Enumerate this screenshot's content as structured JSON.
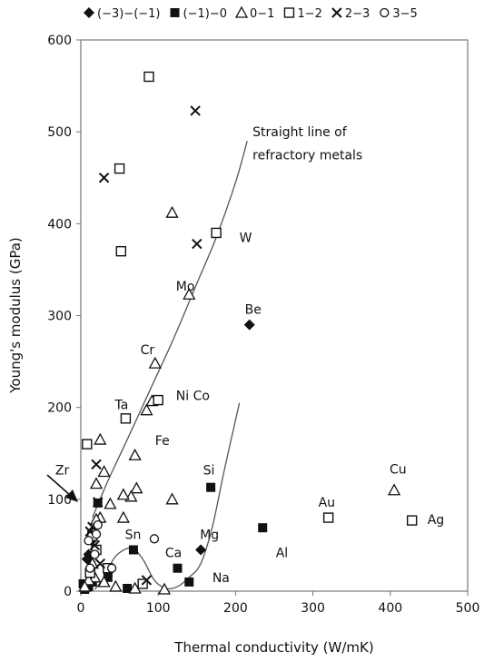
{
  "chart_data": {
    "type": "scatter",
    "xlabel": "Thermal conductivity (W/mK)",
    "ylabel": "Young's modulus (GPa)",
    "xlim": [
      0,
      500
    ],
    "ylim": [
      0,
      600
    ],
    "x_ticks": [
      0,
      100,
      200,
      300,
      400,
      500
    ],
    "y_ticks": [
      0,
      100,
      200,
      300,
      400,
      500,
      600
    ],
    "grid": false,
    "legend_position": "top",
    "series": [
      {
        "name": "(−3)−(−1)",
        "marker": "diamond",
        "points": [
          [
            155,
            45
          ],
          [
            218,
            290
          ],
          [
            10,
            40
          ],
          [
            12,
            32
          ],
          [
            8,
            35
          ],
          [
            14,
            55
          ]
        ]
      },
      {
        "name": "(−1)−0",
        "marker": "square-filled",
        "points": [
          [
            22,
            96
          ],
          [
            68,
            45
          ],
          [
            125,
            25
          ],
          [
            140,
            10
          ],
          [
            168,
            113
          ],
          [
            235,
            69
          ],
          [
            5,
            2
          ],
          [
            10,
            5
          ],
          [
            35,
            15
          ],
          [
            60,
            3
          ],
          [
            3,
            8
          ],
          [
            15,
            10
          ]
        ]
      },
      {
        "name": "0−1",
        "marker": "triangle",
        "points": [
          [
            118,
            412
          ],
          [
            140,
            323
          ],
          [
            96,
            248
          ],
          [
            92,
            207
          ],
          [
            85,
            197
          ],
          [
            20,
            117
          ],
          [
            25,
            165
          ],
          [
            30,
            130
          ],
          [
            70,
            148
          ],
          [
            72,
            112
          ],
          [
            65,
            103
          ],
          [
            55,
            105
          ],
          [
            38,
            95
          ],
          [
            55,
            80
          ],
          [
            25,
            80
          ],
          [
            20,
            78
          ],
          [
            118,
            100
          ],
          [
            405,
            110
          ],
          [
            108,
            2
          ],
          [
            18,
            15
          ],
          [
            10,
            12
          ],
          [
            30,
            10
          ],
          [
            45,
            5
          ],
          [
            70,
            3
          ],
          [
            5,
            5
          ],
          [
            15,
            30
          ]
        ]
      },
      {
        "name": "1−2",
        "marker": "square-open",
        "points": [
          [
            88,
            560
          ],
          [
            50,
            460
          ],
          [
            52,
            370
          ],
          [
            175,
            390
          ],
          [
            100,
            208
          ],
          [
            58,
            188
          ],
          [
            8,
            160
          ],
          [
            320,
            80
          ],
          [
            428,
            77
          ],
          [
            35,
            25
          ],
          [
            15,
            60
          ],
          [
            20,
            45
          ],
          [
            12,
            20
          ],
          [
            80,
            8
          ]
        ]
      },
      {
        "name": "2−3",
        "marker": "cross",
        "points": [
          [
            148,
            523
          ],
          [
            30,
            450
          ],
          [
            150,
            378
          ],
          [
            20,
            138
          ],
          [
            22,
            97
          ],
          [
            15,
            70
          ],
          [
            12,
            65
          ],
          [
            18,
            50
          ],
          [
            85,
            12
          ],
          [
            25,
            30
          ]
        ]
      },
      {
        "name": "3−5",
        "marker": "circle",
        "points": [
          [
            95,
            57
          ],
          [
            20,
            62
          ],
          [
            22,
            72
          ],
          [
            12,
            25
          ],
          [
            18,
            40
          ],
          [
            40,
            25
          ],
          [
            10,
            55
          ]
        ]
      }
    ],
    "curves": [
      {
        "name": "refractory-line",
        "points": [
          [
            15,
            80
          ],
          [
            35,
            120
          ],
          [
            60,
            165
          ],
          [
            90,
            220
          ],
          [
            120,
            275
          ],
          [
            150,
            335
          ],
          [
            175,
            385
          ],
          [
            200,
            445
          ],
          [
            215,
            490
          ]
        ]
      },
      {
        "name": "low-curve",
        "points": [
          [
            18,
            2
          ],
          [
            30,
            15
          ],
          [
            45,
            38
          ],
          [
            65,
            47
          ],
          [
            80,
            35
          ],
          [
            95,
            12
          ],
          [
            110,
            3
          ],
          [
            125,
            5
          ],
          [
            140,
            15
          ],
          [
            155,
            30
          ],
          [
            170,
            70
          ],
          [
            185,
            130
          ],
          [
            205,
            205
          ]
        ]
      }
    ],
    "annotations": [
      {
        "text": "Straight line of",
        "x": 222,
        "y": 495
      },
      {
        "text": "refractory metals",
        "x": 222,
        "y": 470
      },
      {
        "text": "W",
        "x": 205,
        "y": 380
      },
      {
        "text": "Mo",
        "x": 123,
        "y": 327
      },
      {
        "text": "Be",
        "x": 212,
        "y": 302
      },
      {
        "text": "Cr",
        "x": 77,
        "y": 258
      },
      {
        "text": "Ta",
        "x": 44,
        "y": 198
      },
      {
        "text": "Ni Co",
        "x": 123,
        "y": 208
      },
      {
        "text": "Fe",
        "x": 96,
        "y": 159
      },
      {
        "text": "Zr",
        "x": -33,
        "y": 127
      },
      {
        "text": "Si",
        "x": 158,
        "y": 127
      },
      {
        "text": "Cu",
        "x": 399,
        "y": 128
      },
      {
        "text": "Au",
        "x": 307,
        "y": 92
      },
      {
        "text": "Ag",
        "x": 448,
        "y": 73
      },
      {
        "text": "Sn",
        "x": 57,
        "y": 57
      },
      {
        "text": "Mg",
        "x": 154,
        "y": 57
      },
      {
        "text": "Ca",
        "x": 109,
        "y": 37
      },
      {
        "text": "Al",
        "x": 252,
        "y": 37
      },
      {
        "text": "Na",
        "x": 170,
        "y": 10
      }
    ]
  }
}
